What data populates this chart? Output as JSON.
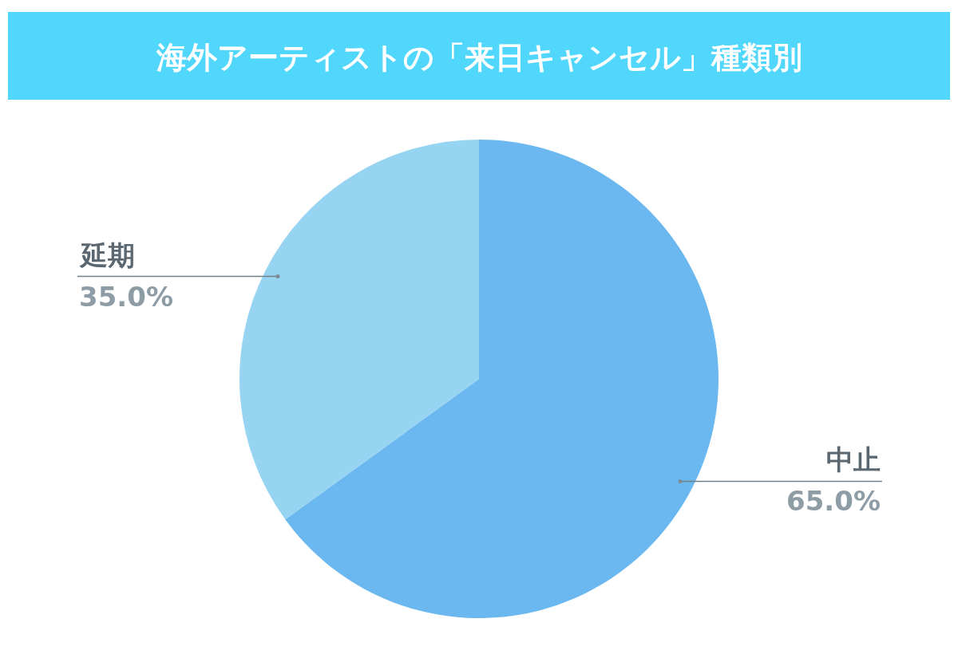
{
  "chart_data": {
    "type": "pie",
    "title": "海外アーティストの「来日キャンセル」種類別",
    "categories": [
      "中止",
      "延期"
    ],
    "values": [
      65.0,
      35.0
    ],
    "colors": [
      "#6bb8f0",
      "#97d4f2"
    ],
    "value_labels": [
      "65.0%",
      "35.0%"
    ]
  }
}
